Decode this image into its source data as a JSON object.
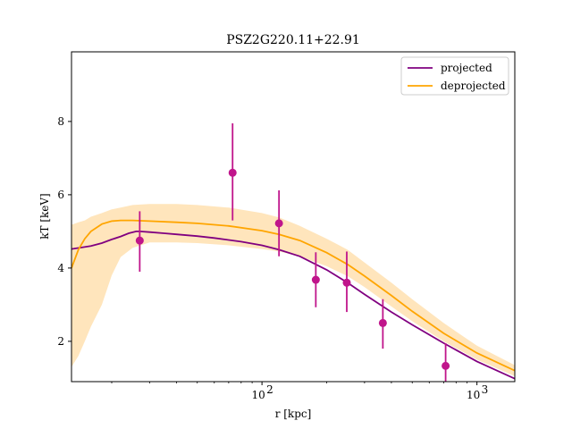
{
  "chart_data": {
    "type": "line",
    "title": "PSZ2G220.11+22.91",
    "xlabel": "r [kpc]",
    "ylabel": "kT [keV]",
    "xscale": "log",
    "xlim": [
      13,
      1500
    ],
    "ylim": [
      0.9,
      9.9
    ],
    "xticks": [
      {
        "value": 100,
        "label": "10",
        "exp": "2"
      },
      {
        "value": 1000,
        "label": "10",
        "exp": "3"
      }
    ],
    "yticks": [
      2,
      4,
      6,
      8
    ],
    "legend_position": "top-right",
    "grid": false,
    "colors": {
      "projected": "#800080",
      "deprojected": "#ffa500",
      "band": "#ffe0b0",
      "data_points": "#c0158b"
    },
    "series": [
      {
        "name": "projected",
        "x": [
          13,
          16,
          18,
          20,
          22,
          24,
          26,
          27,
          30,
          35,
          40,
          50,
          60,
          80,
          100,
          120,
          150,
          200,
          250,
          300,
          400,
          500,
          700,
          1000,
          1500
        ],
        "y": [
          4.52,
          4.6,
          4.68,
          4.78,
          4.86,
          4.95,
          5.0,
          5.0,
          4.98,
          4.95,
          4.92,
          4.87,
          4.82,
          4.72,
          4.62,
          4.5,
          4.32,
          3.95,
          3.6,
          3.28,
          2.8,
          2.45,
          1.95,
          1.45,
          0.98
        ]
      },
      {
        "name": "deprojected",
        "x": [
          13,
          14,
          15,
          16,
          18,
          20,
          22,
          25,
          30,
          40,
          50,
          70,
          100,
          120,
          150,
          200,
          250,
          300,
          400,
          500,
          700,
          1000,
          1500
        ],
        "y": [
          4.0,
          4.5,
          4.8,
          5.0,
          5.2,
          5.28,
          5.3,
          5.3,
          5.28,
          5.25,
          5.22,
          5.15,
          5.02,
          4.92,
          4.75,
          4.42,
          4.1,
          3.78,
          3.25,
          2.82,
          2.22,
          1.68,
          1.2
        ]
      }
    ],
    "band": {
      "x": [
        13,
        14,
        15,
        16,
        18,
        20,
        22,
        25,
        30,
        40,
        50,
        70,
        100,
        120,
        150,
        200,
        250,
        300,
        400,
        500,
        700,
        1000,
        1500
      ],
      "upper": [
        5.18,
        5.25,
        5.3,
        5.4,
        5.5,
        5.6,
        5.65,
        5.72,
        5.75,
        5.75,
        5.72,
        5.65,
        5.5,
        5.38,
        5.15,
        4.8,
        4.5,
        4.15,
        3.6,
        3.15,
        2.5,
        1.88,
        1.35
      ],
      "lower": [
        1.3,
        1.6,
        2.0,
        2.4,
        3.0,
        3.8,
        4.3,
        4.55,
        4.7,
        4.7,
        4.68,
        4.62,
        4.52,
        4.45,
        4.32,
        4.05,
        3.78,
        3.48,
        2.95,
        2.55,
        2.0,
        1.5,
        1.05
      ]
    },
    "data_points": [
      {
        "x": 27,
        "y": 4.75,
        "yerr_low": 0.85,
        "yerr_high": 0.8
      },
      {
        "x": 73,
        "y": 6.6,
        "yerr_low": 1.3,
        "yerr_high": 1.35
      },
      {
        "x": 120,
        "y": 5.22,
        "yerr_low": 0.9,
        "yerr_high": 0.9
      },
      {
        "x": 178,
        "y": 3.68,
        "yerr_low": 0.75,
        "yerr_high": 0.75
      },
      {
        "x": 248,
        "y": 3.6,
        "yerr_low": 0.8,
        "yerr_high": 0.85
      },
      {
        "x": 365,
        "y": 2.5,
        "yerr_low": 0.7,
        "yerr_high": 0.65
      },
      {
        "x": 715,
        "y": 1.33,
        "yerr_low": 0.43,
        "yerr_high": 0.62
      }
    ]
  }
}
